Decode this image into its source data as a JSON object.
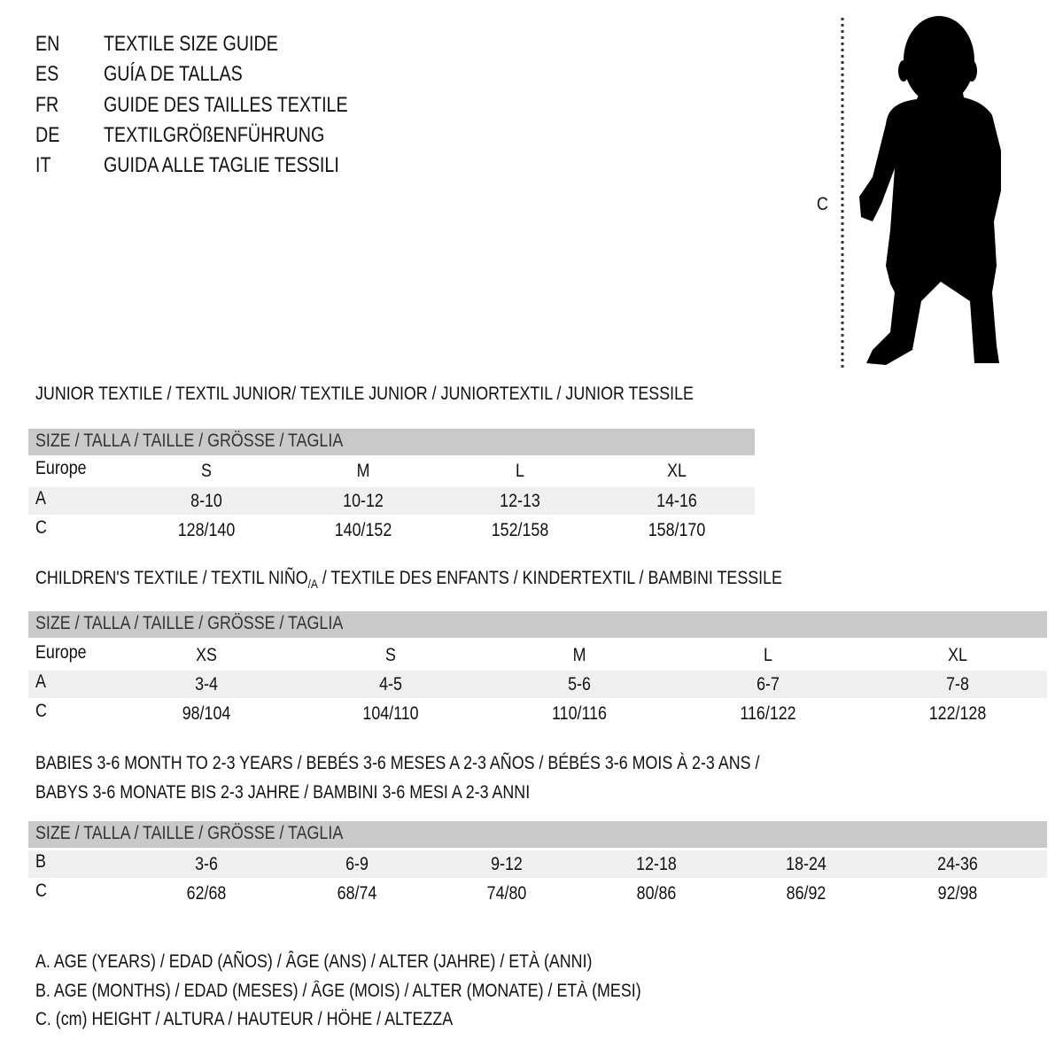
{
  "header": {
    "rows": [
      {
        "code": "EN",
        "title": "TEXTILE SIZE GUIDE"
      },
      {
        "code": "ES",
        "title": "GUÍA DE TALLAS"
      },
      {
        "code": "FR",
        "title": "GUIDE DES TAILLES TEXTILE"
      },
      {
        "code": "DE",
        "title": "TEXTILGRÖßENFÜHRUNG"
      },
      {
        "code": "IT",
        "title": "GUIDA ALLE TAGLIE TESSILI"
      }
    ]
  },
  "figure": {
    "measure_label": "C"
  },
  "junior": {
    "title": "JUNIOR TEXTILE / TEXTIL JUNIOR/ TEXTILE JUNIOR / JUNIORTEXTIL / JUNIOR TESSILE",
    "size_header": "SIZE / TALLA / TAILLE / GRÖSSE / TAGLIA",
    "rows": [
      {
        "label": "Europe",
        "values": [
          "S",
          "M",
          "L",
          "XL"
        ]
      },
      {
        "label": "A",
        "values": [
          "8-10",
          "10-12",
          "12-13",
          "14-16"
        ]
      },
      {
        "label": "C",
        "values": [
          "128/140",
          "140/152",
          "152/158",
          "158/170"
        ]
      }
    ]
  },
  "children": {
    "title_before": "CHILDREN'S TEXTILE / TEXTIL NIÑO",
    "title_sub": "/A",
    "title_after": " / TEXTILE DES ENFANTS / KINDERTEXTIL / BAMBINI TESSILE",
    "size_header": "SIZE / TALLA / TAILLE / GRÖSSE / TAGLIA",
    "rows": [
      {
        "label": "Europe",
        "values": [
          "XS",
          "S",
          "M",
          "L",
          "XL"
        ]
      },
      {
        "label": "A",
        "values": [
          "3-4",
          "4-5",
          "5-6",
          "6-7",
          "7-8"
        ]
      },
      {
        "label": "C",
        "values": [
          "98/104",
          "104/110",
          "110/116",
          "116/122",
          "122/128"
        ]
      }
    ]
  },
  "babies": {
    "title_line1": "BABIES 3-6 MONTH TO 2-3 YEARS / BEBÉS 3-6 MESES A 2-3 AÑOS / BÉBÉS 3-6 MOIS À 2-3 ANS /",
    "title_line2": "BABYS 3-6 MONATE BIS 2-3 JAHRE / BAMBINI 3-6 MESI A 2-3 ANNI",
    "size_header": "SIZE / TALLA / TAILLE / GRÖSSE / TAGLIA",
    "rows": [
      {
        "label": "B",
        "values": [
          "3-6",
          "6-9",
          "9-12",
          "12-18",
          "18-24",
          "24-36"
        ]
      },
      {
        "label": "C",
        "values": [
          "62/68",
          "68/74",
          "74/80",
          "80/86",
          "86/92",
          "92/98"
        ]
      }
    ]
  },
  "legend": [
    "A. AGE (YEARS) / EDAD (AÑOS) / ÂGE (ANS) / ALTER (JAHRE) / ETÀ (ANNI)",
    "B. AGE (MONTHS) / EDAD (MESES) / ÂGE (MOIS) / ALTER (MONATE) / ETÀ (MESI)",
    "C. (cm) HEIGHT / ALTURA / HAUTEUR / HÖHE / ALTEZZA"
  ]
}
